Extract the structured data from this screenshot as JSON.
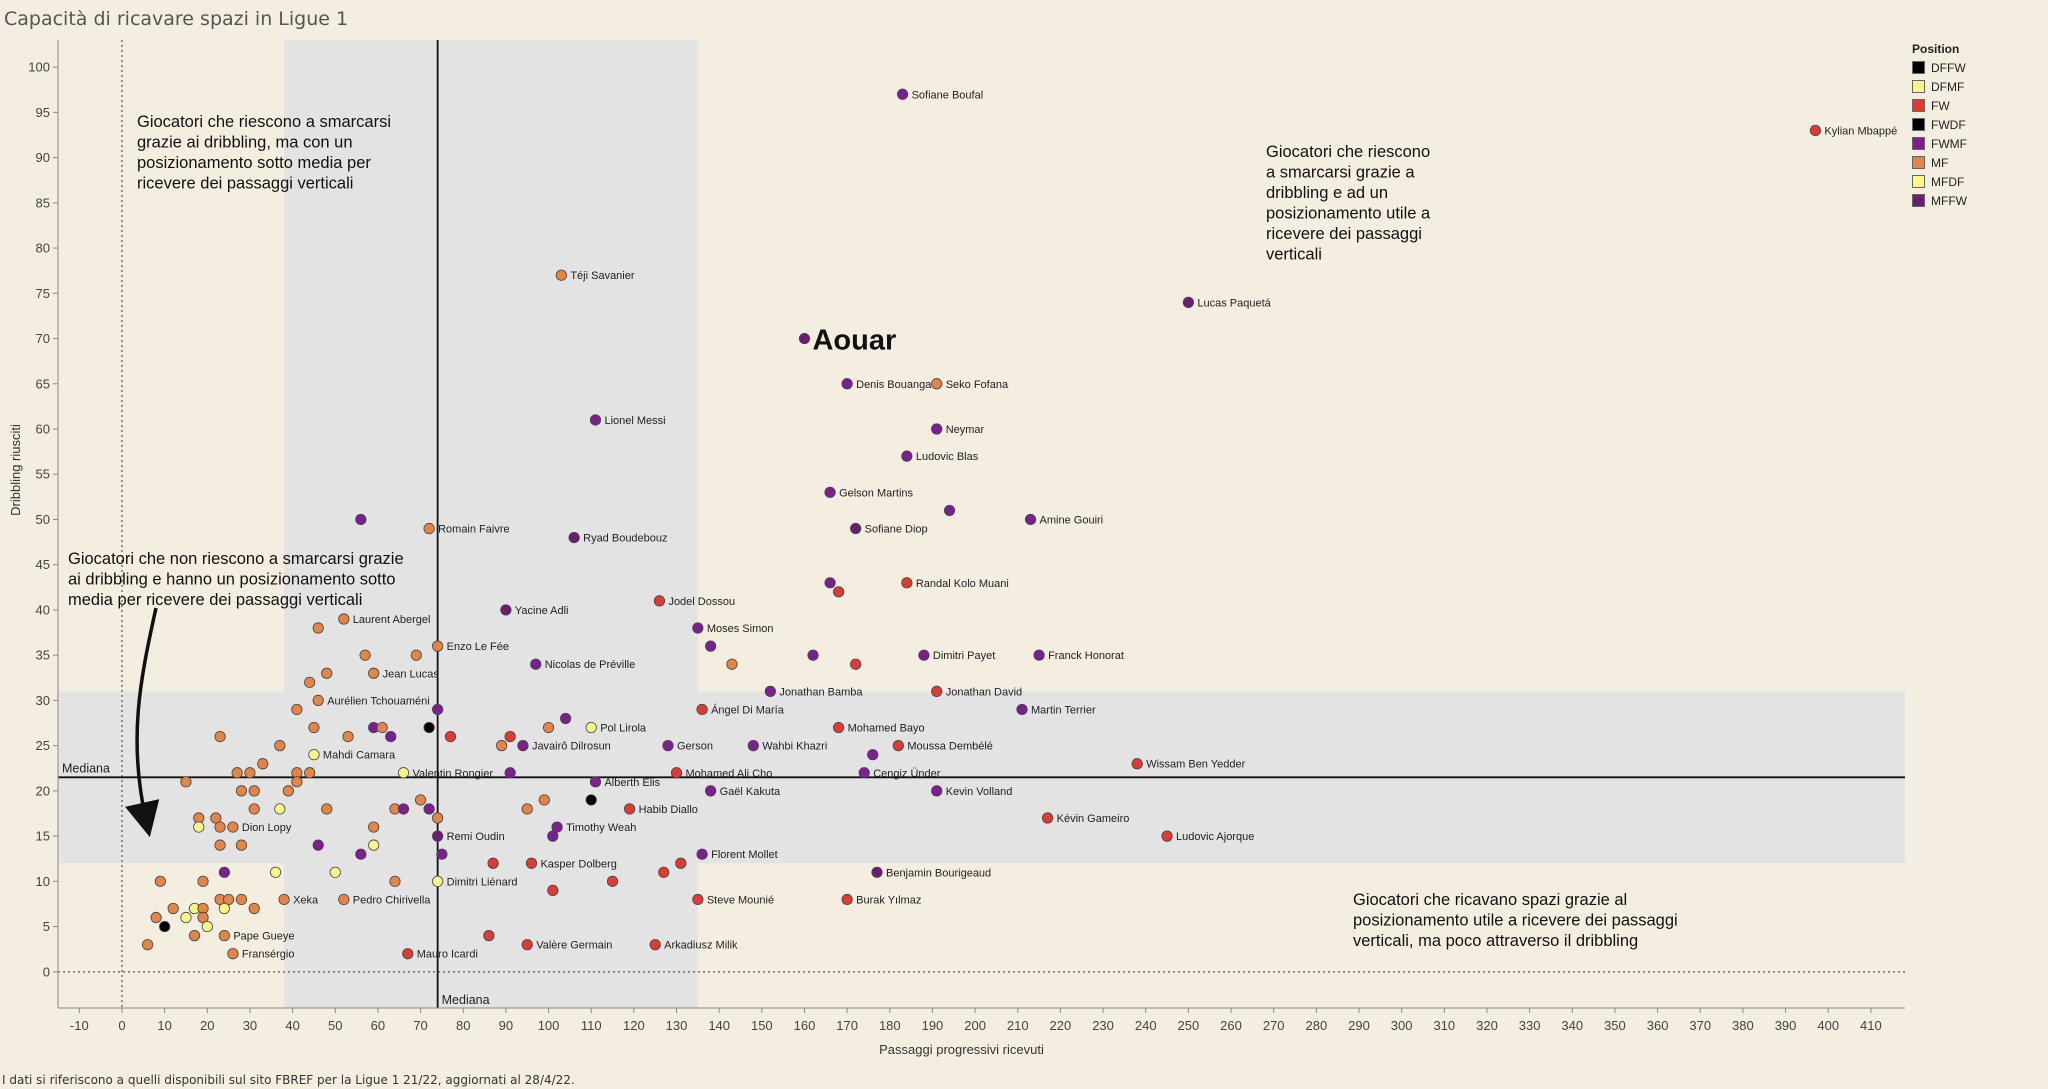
{
  "title": "Capacità di ricavare spazi in Ligue 1",
  "footnote": "I dati si riferiscono a quelli disponibili sul sito FBREF per la Ligue 1 21/22,  aggiornati al 28/4/22.",
  "legend": {
    "title": "Position",
    "items": [
      {
        "label": "DFFW",
        "color": "#000000"
      },
      {
        "label": "DFMF",
        "color": "#fbf58a"
      },
      {
        "label": "FW",
        "color": "#dd3b34"
      },
      {
        "label": "FWDF",
        "color": "#000000"
      },
      {
        "label": "FWMF",
        "color": "#7b1f92"
      },
      {
        "label": "MF",
        "color": "#e48545"
      },
      {
        "label": "MFDF",
        "color": "#fbf58a"
      },
      {
        "label": "MFFW",
        "color": "#6b1d74"
      }
    ]
  },
  "annotations": {
    "top_left": [
      "Giocatori che riescono a smarcarsi",
      "grazie ai dribbling, ma con un",
      "posizionamento sotto media per",
      "ricevere dei passaggi verticali"
    ],
    "top_right": [
      "Giocatori che riescono",
      "a smarcarsi grazie a",
      "dribbling e ad un",
      "posizionamento utile a",
      "ricevere dei passaggi",
      "verticali"
    ],
    "bottom_left": [
      "Giocatori che non riescono a smarcarsi grazie",
      "ai dribbling e hanno un posizionamento sotto",
      "media per ricevere dei passaggi verticali"
    ],
    "bottom_right": [
      "Giocatori che ricavano spazi grazie al",
      "posizionamento utile a ricevere dei passaggi",
      "verticali, ma poco attraverso il dribbling"
    ],
    "median_label_h": "Mediana",
    "median_label_v": "Mediana",
    "highlight": "Aouar"
  },
  "chart_data": {
    "type": "scatter",
    "title": "Capacità di ricavare spazi in Ligue 1",
    "xlabel": "Passaggi progressivi ricevuti",
    "ylabel": "Dribbling riusciti",
    "xlim": [
      -15,
      418
    ],
    "ylim": [
      -4,
      103
    ],
    "xticks": [
      -10,
      0,
      10,
      20,
      30,
      40,
      50,
      60,
      70,
      80,
      90,
      100,
      110,
      120,
      130,
      140,
      150,
      160,
      170,
      180,
      190,
      200,
      210,
      220,
      230,
      240,
      250,
      260,
      270,
      280,
      290,
      300,
      310,
      320,
      330,
      340,
      350,
      360,
      370,
      380,
      390,
      400,
      410
    ],
    "yticks": [
      0,
      5,
      10,
      15,
      20,
      25,
      30,
      35,
      40,
      45,
      50,
      55,
      60,
      65,
      70,
      75,
      80,
      85,
      90,
      95,
      100
    ],
    "median_x": 74,
    "median_y": 21.5,
    "median_band_x": [
      38,
      135
    ],
    "median_band_y": [
      12,
      31
    ],
    "legend_position": "top-right",
    "position_colors": {
      "DFFW": "#000000",
      "DFMF": "#fbf58a",
      "FW": "#dd3b34",
      "FWDF": "#000000",
      "FWMF": "#7b1f92",
      "MF": "#e48545",
      "MFDF": "#fbf58a",
      "MFFW": "#6b1d74"
    },
    "highlight_player": {
      "label": "Aouar",
      "x": 160,
      "y": 70,
      "pos": "MFFW"
    },
    "labeled_points": [
      {
        "label": "Kylian Mbappé",
        "x": 397,
        "y": 93,
        "pos": "FW"
      },
      {
        "label": "Sofiane Boufal",
        "x": 183,
        "y": 97,
        "pos": "FWMF"
      },
      {
        "label": "Lucas Paquetá",
        "x": 250,
        "y": 74,
        "pos": "MFFW"
      },
      {
        "label": "Téji Savanier",
        "x": 103,
        "y": 77,
        "pos": "MF"
      },
      {
        "label": "Denis Bouanga",
        "x": 170,
        "y": 65,
        "pos": "FWMF"
      },
      {
        "label": "Seko Fofana",
        "x": 191,
        "y": 65,
        "pos": "MF"
      },
      {
        "label": "Lionel Messi",
        "x": 111,
        "y": 61,
        "pos": "FWMF"
      },
      {
        "label": "Neymar",
        "x": 191,
        "y": 60,
        "pos": "FWMF"
      },
      {
        "label": "Ludovic Blas",
        "x": 184,
        "y": 57,
        "pos": "FWMF"
      },
      {
        "label": "Gelson Martins",
        "x": 166,
        "y": 53,
        "pos": "FWMF"
      },
      {
        "label": "Amine Gouiri",
        "x": 213,
        "y": 50,
        "pos": "FWMF"
      },
      {
        "label": "Sofiane Diop",
        "x": 172,
        "y": 49,
        "pos": "MFFW"
      },
      {
        "label": "Romain Faivre",
        "x": 72,
        "y": 49,
        "pos": "MF"
      },
      {
        "label": "Ryad Boudebouz",
        "x": 106,
        "y": 48,
        "pos": "MFFW"
      },
      {
        "label": "Randal Kolo Muani",
        "x": 184,
        "y": 43,
        "pos": "FW"
      },
      {
        "label": "Jodel Dossou",
        "x": 126,
        "y": 41,
        "pos": "FW"
      },
      {
        "label": "Yacine Adli",
        "x": 90,
        "y": 40,
        "pos": "MFFW"
      },
      {
        "label": "Moses Simon",
        "x": 135,
        "y": 38,
        "pos": "FWMF"
      },
      {
        "label": "Laurent Abergel",
        "x": 52,
        "y": 39,
        "pos": "MF"
      },
      {
        "label": "Enzo Le Fée",
        "x": 74,
        "y": 36,
        "pos": "MF"
      },
      {
        "label": "Dimitri Payet",
        "x": 188,
        "y": 35,
        "pos": "FWMF"
      },
      {
        "label": "Franck Honorat",
        "x": 215,
        "y": 35,
        "pos": "FWMF"
      },
      {
        "label": "Nicolas de Préville",
        "x": 97,
        "y": 34,
        "pos": "FWMF"
      },
      {
        "label": "Jean Lucas",
        "x": 59,
        "y": 33,
        "pos": "MF"
      },
      {
        "label": "Jonathan Bamba",
        "x": 152,
        "y": 31,
        "pos": "FWMF"
      },
      {
        "label": "Jonathan David",
        "x": 191,
        "y": 31,
        "pos": "FW"
      },
      {
        "label": "Aurélien Tchouaméni",
        "x": 46,
        "y": 30,
        "pos": "MF"
      },
      {
        "label": "Ángel Di María",
        "x": 136,
        "y": 29,
        "pos": "FW"
      },
      {
        "label": "Martin Terrier",
        "x": 211,
        "y": 29,
        "pos": "FWMF"
      },
      {
        "label": "Pol Lirola",
        "x": 110,
        "y": 27,
        "pos": "DFMF"
      },
      {
        "label": "Mohamed Bayo",
        "x": 168,
        "y": 27,
        "pos": "FW"
      },
      {
        "label": "Javairô Dilrosun",
        "x": 94,
        "y": 25,
        "pos": "FWMF"
      },
      {
        "label": "Gerson",
        "x": 128,
        "y": 25,
        "pos": "FWMF"
      },
      {
        "label": "Wahbi Khazri",
        "x": 148,
        "y": 25,
        "pos": "FWMF"
      },
      {
        "label": "Moussa Dembélé",
        "x": 182,
        "y": 25,
        "pos": "FW"
      },
      {
        "label": "Mahdi Camara",
        "x": 45,
        "y": 24,
        "pos": "DFMF"
      },
      {
        "label": "Wissam Ben Yedder",
        "x": 238,
        "y": 23,
        "pos": "FW"
      },
      {
        "label": "Valentin Rongier",
        "x": 66,
        "y": 22,
        "pos": "MFDF"
      },
      {
        "label": "Mohamed Ali Cho",
        "x": 130,
        "y": 22,
        "pos": "FW"
      },
      {
        "label": "Cengiz Ünder",
        "x": 174,
        "y": 22,
        "pos": "FWMF"
      },
      {
        "label": "Alberth Elis",
        "x": 111,
        "y": 21,
        "pos": "FWMF"
      },
      {
        "label": "Gaël Kakuta",
        "x": 138,
        "y": 20,
        "pos": "FWMF"
      },
      {
        "label": "Kevin Volland",
        "x": 191,
        "y": 20,
        "pos": "FWMF"
      },
      {
        "label": "Habib Diallo",
        "x": 119,
        "y": 18,
        "pos": "FW"
      },
      {
        "label": "Kévin Gameiro",
        "x": 217,
        "y": 17,
        "pos": "FW"
      },
      {
        "label": "Dion Lopy",
        "x": 26,
        "y": 16,
        "pos": "MF"
      },
      {
        "label": "Timothy Weah",
        "x": 102,
        "y": 16,
        "pos": "FWMF"
      },
      {
        "label": "Remi Oudin",
        "x": 74,
        "y": 15,
        "pos": "MFFW"
      },
      {
        "label": "Ludovic Ajorque",
        "x": 245,
        "y": 15,
        "pos": "FW"
      },
      {
        "label": "Florent Mollet",
        "x": 136,
        "y": 13,
        "pos": "FWMF"
      },
      {
        "label": "Kasper Dolberg",
        "x": 96,
        "y": 12,
        "pos": "FW"
      },
      {
        "label": "Benjamin Bourigeaud",
        "x": 177,
        "y": 11,
        "pos": "MFFW"
      },
      {
        "label": "Dimitri Liénard",
        "x": 74,
        "y": 10,
        "pos": "DFMF"
      },
      {
        "label": "Xeka",
        "x": 38,
        "y": 8,
        "pos": "MF"
      },
      {
        "label": "Pedro Chirivella",
        "x": 52,
        "y": 8,
        "pos": "MF"
      },
      {
        "label": "Steve Mounié",
        "x": 135,
        "y": 8,
        "pos": "FW"
      },
      {
        "label": "Burak Yılmaz",
        "x": 170,
        "y": 8,
        "pos": "FW"
      },
      {
        "label": "Pape Gueye",
        "x": 24,
        "y": 4,
        "pos": "MF"
      },
      {
        "label": "Valère Germain",
        "x": 95,
        "y": 3,
        "pos": "FW"
      },
      {
        "label": "Arkadiusz Milik",
        "x": 125,
        "y": 3,
        "pos": "FW"
      },
      {
        "label": "Fransérgio",
        "x": 26,
        "y": 2,
        "pos": "MF"
      },
      {
        "label": "Mauro Icardi",
        "x": 67,
        "y": 2,
        "pos": "FW"
      }
    ],
    "unlabeled_points": [
      {
        "x": 56,
        "y": 50,
        "pos": "FWMF"
      },
      {
        "x": 194,
        "y": 51,
        "pos": "FWMF"
      },
      {
        "x": 166,
        "y": 43,
        "pos": "FWMF"
      },
      {
        "x": 168,
        "y": 42,
        "pos": "FW"
      },
      {
        "x": 46,
        "y": 38,
        "pos": "MF"
      },
      {
        "x": 138,
        "y": 36,
        "pos": "FWMF"
      },
      {
        "x": 162,
        "y": 35,
        "pos": "FWMF"
      },
      {
        "x": 172,
        "y": 34,
        "pos": "FW"
      },
      {
        "x": 143,
        "y": 34,
        "pos": "MF"
      },
      {
        "x": 57,
        "y": 35,
        "pos": "MF"
      },
      {
        "x": 69,
        "y": 35,
        "pos": "MF"
      },
      {
        "x": 48,
        "y": 33,
        "pos": "MF"
      },
      {
        "x": 44,
        "y": 32,
        "pos": "MF"
      },
      {
        "x": 74,
        "y": 29,
        "pos": "FWMF"
      },
      {
        "x": 41,
        "y": 29,
        "pos": "MF"
      },
      {
        "x": 104,
        "y": 28,
        "pos": "FWMF"
      },
      {
        "x": 72,
        "y": 27,
        "pos": "FWDF"
      },
      {
        "x": 59,
        "y": 27,
        "pos": "FWMF"
      },
      {
        "x": 61,
        "y": 27,
        "pos": "MF"
      },
      {
        "x": 45,
        "y": 27,
        "pos": "MF"
      },
      {
        "x": 100,
        "y": 27,
        "pos": "MF"
      },
      {
        "x": 63,
        "y": 26,
        "pos": "FWMF"
      },
      {
        "x": 77,
        "y": 26,
        "pos": "FW"
      },
      {
        "x": 91,
        "y": 26,
        "pos": "FW"
      },
      {
        "x": 23,
        "y": 26,
        "pos": "MF"
      },
      {
        "x": 53,
        "y": 26,
        "pos": "MF"
      },
      {
        "x": 37,
        "y": 25,
        "pos": "MF"
      },
      {
        "x": 89,
        "y": 25,
        "pos": "MF"
      },
      {
        "x": 176,
        "y": 24,
        "pos": "FWMF"
      },
      {
        "x": 33,
        "y": 23,
        "pos": "MF"
      },
      {
        "x": 27,
        "y": 22,
        "pos": "MF"
      },
      {
        "x": 30,
        "y": 22,
        "pos": "MF"
      },
      {
        "x": 41,
        "y": 22,
        "pos": "MF"
      },
      {
        "x": 44,
        "y": 22,
        "pos": "MF"
      },
      {
        "x": 91,
        "y": 22,
        "pos": "FWMF"
      },
      {
        "x": 15,
        "y": 21,
        "pos": "MF"
      },
      {
        "x": 41,
        "y": 21,
        "pos": "MF"
      },
      {
        "x": 28,
        "y": 20,
        "pos": "MF"
      },
      {
        "x": 31,
        "y": 20,
        "pos": "MF"
      },
      {
        "x": 39,
        "y": 20,
        "pos": "MF"
      },
      {
        "x": 110,
        "y": 19,
        "pos": "DFFW"
      },
      {
        "x": 70,
        "y": 19,
        "pos": "MF"
      },
      {
        "x": 99,
        "y": 19,
        "pos": "MF"
      },
      {
        "x": 31,
        "y": 18,
        "pos": "MF"
      },
      {
        "x": 37,
        "y": 18,
        "pos": "DFMF"
      },
      {
        "x": 48,
        "y": 18,
        "pos": "MF"
      },
      {
        "x": 64,
        "y": 18,
        "pos": "MF"
      },
      {
        "x": 66,
        "y": 18,
        "pos": "FWMF"
      },
      {
        "x": 72,
        "y": 18,
        "pos": "FWMF"
      },
      {
        "x": 95,
        "y": 18,
        "pos": "MF"
      },
      {
        "x": 18,
        "y": 17,
        "pos": "MF"
      },
      {
        "x": 22,
        "y": 17,
        "pos": "MF"
      },
      {
        "x": 74,
        "y": 17,
        "pos": "MF"
      },
      {
        "x": 18,
        "y": 16,
        "pos": "DFMF"
      },
      {
        "x": 23,
        "y": 16,
        "pos": "MF"
      },
      {
        "x": 59,
        "y": 16,
        "pos": "MF"
      },
      {
        "x": 101,
        "y": 15,
        "pos": "FWMF"
      },
      {
        "x": 23,
        "y": 14,
        "pos": "MF"
      },
      {
        "x": 28,
        "y": 14,
        "pos": "MF"
      },
      {
        "x": 46,
        "y": 14,
        "pos": "FWMF"
      },
      {
        "x": 59,
        "y": 14,
        "pos": "DFMF"
      },
      {
        "x": 56,
        "y": 13,
        "pos": "FWMF"
      },
      {
        "x": 75,
        "y": 13,
        "pos": "FWMF"
      },
      {
        "x": 87,
        "y": 12,
        "pos": "FW"
      },
      {
        "x": 131,
        "y": 12,
        "pos": "FW"
      },
      {
        "x": 24,
        "y": 11,
        "pos": "FWMF"
      },
      {
        "x": 36,
        "y": 11,
        "pos": "DFMF"
      },
      {
        "x": 50,
        "y": 11,
        "pos": "DFMF"
      },
      {
        "x": 127,
        "y": 11,
        "pos": "FW"
      },
      {
        "x": 9,
        "y": 10,
        "pos": "MF"
      },
      {
        "x": 19,
        "y": 10,
        "pos": "MF"
      },
      {
        "x": 64,
        "y": 10,
        "pos": "MF"
      },
      {
        "x": 115,
        "y": 10,
        "pos": "FW"
      },
      {
        "x": 101,
        "y": 9,
        "pos": "FW"
      },
      {
        "x": 23,
        "y": 8,
        "pos": "MF"
      },
      {
        "x": 25,
        "y": 8,
        "pos": "MF"
      },
      {
        "x": 28,
        "y": 8,
        "pos": "MF"
      },
      {
        "x": 12,
        "y": 7,
        "pos": "MF"
      },
      {
        "x": 17,
        "y": 7,
        "pos": "DFMF"
      },
      {
        "x": 19,
        "y": 7,
        "pos": "MF"
      },
      {
        "x": 24,
        "y": 7,
        "pos": "DFMF"
      },
      {
        "x": 31,
        "y": 7,
        "pos": "MF"
      },
      {
        "x": 8,
        "y": 6,
        "pos": "MF"
      },
      {
        "x": 15,
        "y": 6,
        "pos": "DFMF"
      },
      {
        "x": 19,
        "y": 6,
        "pos": "MF"
      },
      {
        "x": 10,
        "y": 5,
        "pos": "DFFW"
      },
      {
        "x": 20,
        "y": 5,
        "pos": "DFMF"
      },
      {
        "x": 17,
        "y": 4,
        "pos": "MF"
      },
      {
        "x": 86,
        "y": 4,
        "pos": "FW"
      },
      {
        "x": 6,
        "y": 3,
        "pos": "MF"
      }
    ]
  }
}
